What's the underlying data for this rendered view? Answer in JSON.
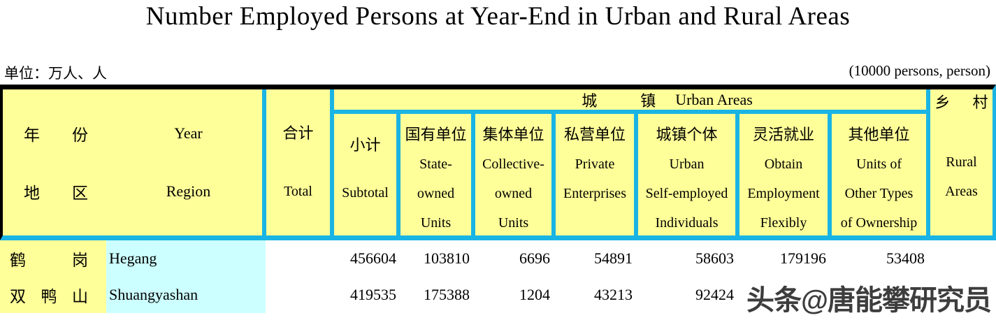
{
  "title": "Number Employed Persons at Year-End in Urban and Rural Areas",
  "unit_note_cn": "单位：万人、人",
  "unit_note_en": "(10000 persons, person)",
  "colors": {
    "header_fill": "#ffff99",
    "grid_line": "#1ab4e4",
    "region_en_fill": "#ccffff",
    "top_rule": "#000000"
  },
  "header": {
    "year_region": {
      "cn_year": [
        "年",
        "份"
      ],
      "en_year": "Year",
      "cn_region": [
        "地",
        "区"
      ],
      "en_region": "Region"
    },
    "total": {
      "cn": "合计",
      "en": "Total"
    },
    "urban_span": {
      "cn1": "城",
      "cn2": "镇",
      "en": "Urban Areas"
    },
    "columns": [
      {
        "cn": "小计",
        "en_lines": [
          "Subtotal"
        ]
      },
      {
        "cn": "国有单位",
        "en_lines": [
          "State-",
          "owned",
          "Units"
        ]
      },
      {
        "cn": "集体单位",
        "en_lines": [
          "Collective-",
          "owned",
          "Units"
        ]
      },
      {
        "cn": "私营单位",
        "en_lines": [
          "Private",
          "Enterprises"
        ]
      },
      {
        "cn": "城镇个体",
        "en_lines": [
          "Urban",
          "Self-employed",
          "Individuals"
        ]
      },
      {
        "cn": "灵活就业",
        "en_lines": [
          "Obtain",
          "Employment",
          "Flexibly"
        ]
      },
      {
        "cn": "其他单位",
        "en_lines": [
          "Units of",
          "Other Types",
          "of Ownership"
        ]
      }
    ],
    "rural": {
      "cn": [
        "乡",
        "村"
      ],
      "en_lines": [
        "Rural",
        "Areas"
      ]
    }
  },
  "rows": [
    {
      "region_cn": [
        "鹤",
        "岗"
      ],
      "region_en": "Hegang",
      "total": "",
      "values": [
        "456604",
        "103810",
        "6696",
        "54891",
        "58603",
        "179196",
        "53408"
      ],
      "rural": ""
    },
    {
      "region_cn": [
        "双",
        "鸭",
        "山"
      ],
      "region_en": "Shuangyashan",
      "total": "",
      "values": [
        "419535",
        "175388",
        "1204",
        "43213",
        "92424",
        "",
        ""
      ],
      "rural": ""
    }
  ],
  "watermark": "头条@唐能攀研究员"
}
